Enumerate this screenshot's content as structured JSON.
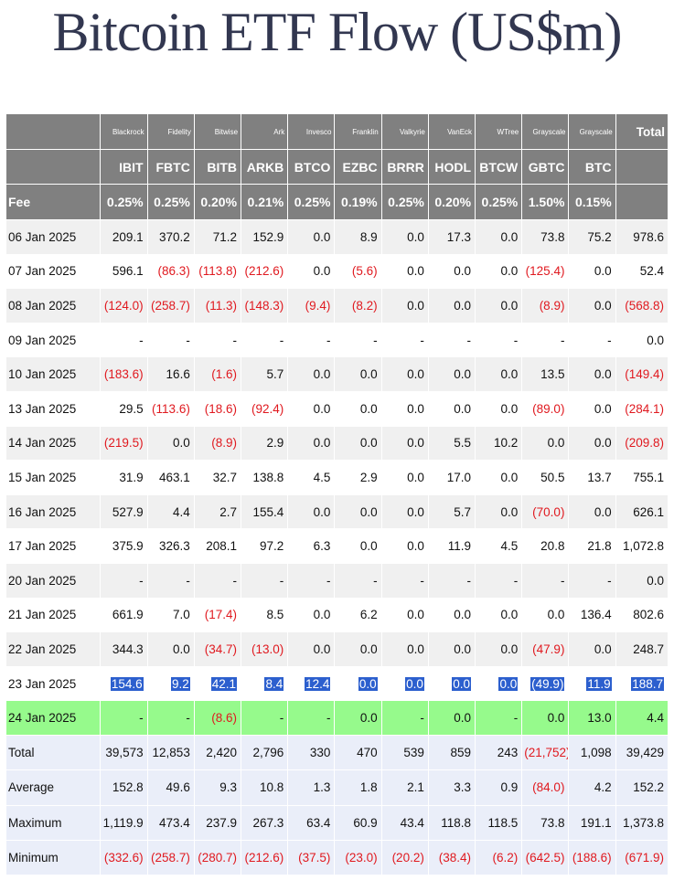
{
  "title": "Bitcoin ETF Flow (US$m)",
  "colors": {
    "header_bg": "#808080",
    "negative": "#e0191f",
    "highlight_blue": "#2c5fce",
    "highlight_green": "#96fa8c",
    "stats_bg": "#eaeef9",
    "title": "#323750"
  },
  "header": {
    "issuers": [
      "Blackrock",
      "Fidelity",
      "Bitwise",
      "Ark",
      "Invesco",
      "Franklin",
      "Valkyrie",
      "VanEck",
      "WTree",
      "Grayscale",
      "Grayscale"
    ],
    "tickers": [
      "IBIT",
      "FBTC",
      "BITB",
      "ARKB",
      "BTCO",
      "EZBC",
      "BRRR",
      "HODL",
      "BTCW",
      "GBTC",
      "BTC"
    ],
    "fee_label": "Fee",
    "fees": [
      "0.25%",
      "0.25%",
      "0.20%",
      "0.21%",
      "0.25%",
      "0.19%",
      "0.25%",
      "0.20%",
      "0.25%",
      "1.50%",
      "0.15%"
    ],
    "total_label": "Total"
  },
  "rows": [
    {
      "date": "06 Jan 2025",
      "values": [
        "209.1",
        "370.2",
        "71.2",
        "152.9",
        "0.0",
        "8.9",
        "0.0",
        "17.3",
        "0.0",
        "73.8",
        "75.2"
      ],
      "total": "978.6"
    },
    {
      "date": "07 Jan 2025",
      "values": [
        "596.1",
        "(86.3)",
        "(113.8)",
        "(212.6)",
        "0.0",
        "(5.6)",
        "0.0",
        "0.0",
        "0.0",
        "(125.4)",
        "0.0"
      ],
      "total": "52.4"
    },
    {
      "date": "08 Jan 2025",
      "values": [
        "(124.0)",
        "(258.7)",
        "(11.3)",
        "(148.3)",
        "(9.4)",
        "(8.2)",
        "0.0",
        "0.0",
        "0.0",
        "(8.9)",
        "0.0"
      ],
      "total": "(568.8)"
    },
    {
      "date": "09 Jan 2025",
      "values": [
        "-",
        "-",
        "-",
        "-",
        "-",
        "-",
        "-",
        "-",
        "-",
        "-",
        "-"
      ],
      "total": "0.0"
    },
    {
      "date": "10 Jan 2025",
      "values": [
        "(183.6)",
        "16.6",
        "(1.6)",
        "5.7",
        "0.0",
        "0.0",
        "0.0",
        "0.0",
        "0.0",
        "13.5",
        "0.0"
      ],
      "total": "(149.4)"
    },
    {
      "date": "13 Jan 2025",
      "values": [
        "29.5",
        "(113.6)",
        "(18.6)",
        "(92.4)",
        "0.0",
        "0.0",
        "0.0",
        "0.0",
        "0.0",
        "(89.0)",
        "0.0"
      ],
      "total": "(284.1)"
    },
    {
      "date": "14 Jan 2025",
      "values": [
        "(219.5)",
        "0.0",
        "(8.9)",
        "2.9",
        "0.0",
        "0.0",
        "0.0",
        "5.5",
        "10.2",
        "0.0",
        "0.0"
      ],
      "total": "(209.8)"
    },
    {
      "date": "15 Jan 2025",
      "values": [
        "31.9",
        "463.1",
        "32.7",
        "138.8",
        "4.5",
        "2.9",
        "0.0",
        "17.0",
        "0.0",
        "50.5",
        "13.7"
      ],
      "total": "755.1"
    },
    {
      "date": "16 Jan 2025",
      "values": [
        "527.9",
        "4.4",
        "2.7",
        "155.4",
        "0.0",
        "0.0",
        "0.0",
        "5.7",
        "0.0",
        "(70.0)",
        "0.0"
      ],
      "total": "626.1"
    },
    {
      "date": "17 Jan 2025",
      "values": [
        "375.9",
        "326.3",
        "208.1",
        "97.2",
        "6.3",
        "0.0",
        "0.0",
        "11.9",
        "4.5",
        "20.8",
        "21.8"
      ],
      "total": "1,072.8"
    },
    {
      "date": "20 Jan 2025",
      "values": [
        "-",
        "-",
        "-",
        "-",
        "-",
        "-",
        "-",
        "-",
        "-",
        "-",
        "-"
      ],
      "total": "0.0"
    },
    {
      "date": "21 Jan 2025",
      "values": [
        "661.9",
        "7.0",
        "(17.4)",
        "8.5",
        "0.0",
        "6.2",
        "0.0",
        "0.0",
        "0.0",
        "0.0",
        "136.4"
      ],
      "total": "802.6"
    },
    {
      "date": "22 Jan 2025",
      "values": [
        "344.3",
        "0.0",
        "(34.7)",
        "(13.0)",
        "0.0",
        "0.0",
        "0.0",
        "0.0",
        "0.0",
        "(47.9)",
        "0.0"
      ],
      "total": "248.7"
    },
    {
      "date": "23 Jan 2025",
      "highlight": "blue",
      "values": [
        "154.6",
        "9.2",
        "42.1",
        "8.4",
        "12.4",
        "0.0",
        "0.0",
        "0.0",
        "0.0",
        "(49.9)",
        "11.9"
      ],
      "total": "188.7"
    },
    {
      "date": "24 Jan 2025",
      "highlight": "green",
      "values": [
        "-",
        "-",
        "(8.6)",
        "-",
        "-",
        "0.0",
        "-",
        "0.0",
        "-",
        "0.0",
        "13.0"
      ],
      "total": "4.4"
    }
  ],
  "stats": [
    {
      "label": "Total",
      "values": [
        "39,573",
        "12,853",
        "2,420",
        "2,796",
        "330",
        "470",
        "539",
        "859",
        "243",
        "(21,752)",
        "1,098"
      ],
      "total": "39,429"
    },
    {
      "label": "Average",
      "values": [
        "152.8",
        "49.6",
        "9.3",
        "10.8",
        "1.3",
        "1.8",
        "2.1",
        "3.3",
        "0.9",
        "(84.0)",
        "4.2"
      ],
      "total": "152.2"
    },
    {
      "label": "Maximum",
      "values": [
        "1,119.9",
        "473.4",
        "237.9",
        "267.3",
        "63.4",
        "60.9",
        "43.4",
        "118.8",
        "118.5",
        "73.8",
        "191.1"
      ],
      "total": "1,373.8"
    },
    {
      "label": "Minimum",
      "values": [
        "(332.6)",
        "(258.7)",
        "(280.7)",
        "(212.6)",
        "(37.5)",
        "(23.0)",
        "(20.2)",
        "(38.4)",
        "(6.2)",
        "(642.5)",
        "(188.6)"
      ],
      "total": "(671.9)"
    }
  ]
}
